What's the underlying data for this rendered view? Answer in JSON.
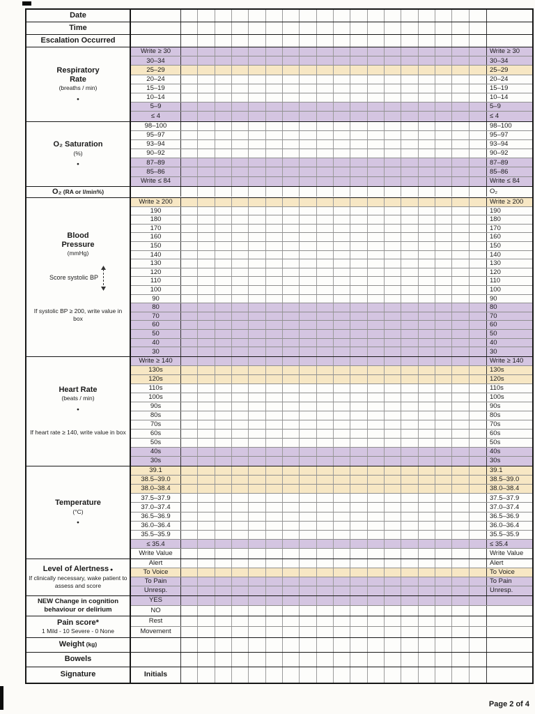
{
  "page": {
    "footer": "Page 2 of 4"
  },
  "colors": {
    "purple": "#d4c5e1",
    "yellow": "#f7e7c4"
  },
  "icons": {
    "bullet": "●",
    "score_arrow": "up-down-dashed-arrow"
  },
  "table": {
    "sections": [
      {
        "id": "date",
        "label": {
          "title": "Date"
        },
        "rows": [
          {
            "v": "",
            "r": "",
            "hl": "none"
          }
        ]
      },
      {
        "id": "time",
        "label": {
          "title": "Time"
        },
        "rows": [
          {
            "v": "",
            "r": "",
            "hl": "none"
          }
        ]
      },
      {
        "id": "escalation",
        "label": {
          "title": "Escalation Occurred"
        },
        "rows": [
          {
            "v": "",
            "r": "",
            "hl": "none"
          }
        ]
      },
      {
        "id": "respiratory-rate",
        "label": {
          "title": "Respiratory\nRate",
          "sub": "(breaths / min)",
          "bullet": true
        },
        "rows": [
          {
            "v": "Write ≥ 30",
            "r": "Write ≥ 30",
            "hl": "purple"
          },
          {
            "v": "30–34",
            "r": "30–34",
            "hl": "purple"
          },
          {
            "v": "25–29",
            "r": "25–29",
            "hl": "yellow"
          },
          {
            "v": "20–24",
            "r": "20–24",
            "hl": "none"
          },
          {
            "v": "15–19",
            "r": "15–19",
            "hl": "none"
          },
          {
            "v": "10–14",
            "r": "10–14",
            "hl": "none"
          },
          {
            "v": "5–9",
            "r": "5–9",
            "hl": "purple"
          },
          {
            "v": "≤ 4",
            "r": "≤ 4",
            "hl": "purple"
          }
        ]
      },
      {
        "id": "o2-saturation",
        "label": {
          "title": "O₂ Saturation",
          "sub": "(%)",
          "bullet": true
        },
        "rows": [
          {
            "v": "98–100",
            "r": "98–100",
            "hl": "none"
          },
          {
            "v": "95–97",
            "r": "95–97",
            "hl": "none"
          },
          {
            "v": "93–94",
            "r": "93–94",
            "hl": "none"
          },
          {
            "v": "90–92",
            "r": "90–92",
            "hl": "none"
          },
          {
            "v": "87–89",
            "r": "87–89",
            "hl": "purple"
          },
          {
            "v": "85–86",
            "r": "85–86",
            "hl": "purple"
          },
          {
            "v": "Write ≤ 84",
            "r": "Write ≤ 84",
            "hl": "purple"
          }
        ]
      },
      {
        "id": "o2-delivery",
        "label": {
          "title": "O₂",
          "sub_inline": "(RA or l/min%)"
        },
        "rows": [
          {
            "v": "",
            "r": "O₂",
            "hl": "none"
          }
        ]
      },
      {
        "id": "blood-pressure",
        "label": {
          "title": "Blood\nPressure",
          "sub": "(mmHg)",
          "mid": "Score systolic BP",
          "arrow": true,
          "note": "If systolic BP ≥ 200, write value in box"
        },
        "rows": [
          {
            "v": "Write ≥ 200",
            "r": "Write ≥ 200",
            "hl": "yellow"
          },
          {
            "v": "190",
            "r": "190",
            "hl": "none"
          },
          {
            "v": "180",
            "r": "180",
            "hl": "none"
          },
          {
            "v": "170",
            "r": "170",
            "hl": "none"
          },
          {
            "v": "160",
            "r": "160",
            "hl": "none"
          },
          {
            "v": "150",
            "r": "150",
            "hl": "none"
          },
          {
            "v": "140",
            "r": "140",
            "hl": "none"
          },
          {
            "v": "130",
            "r": "130",
            "hl": "none"
          },
          {
            "v": "120",
            "r": "120",
            "hl": "none"
          },
          {
            "v": "110",
            "r": "110",
            "hl": "none"
          },
          {
            "v": "100",
            "r": "100",
            "hl": "none"
          },
          {
            "v": "90",
            "r": "90",
            "hl": "none"
          },
          {
            "v": "80",
            "r": "80",
            "hl": "purple"
          },
          {
            "v": "70",
            "r": "70",
            "hl": "purple"
          },
          {
            "v": "60",
            "r": "60",
            "hl": "purple"
          },
          {
            "v": "50",
            "r": "50",
            "hl": "purple"
          },
          {
            "v": "40",
            "r": "40",
            "hl": "purple"
          },
          {
            "v": "30",
            "r": "30",
            "hl": "purple"
          }
        ]
      },
      {
        "id": "heart-rate",
        "label": {
          "title": "Heart Rate",
          "sub": "(beats / min)",
          "bullet": true,
          "note": "If heart rate ≥ 140, write value in box"
        },
        "rows": [
          {
            "v": "Write ≥ 140",
            "r": "Write ≥ 140",
            "hl": "purple"
          },
          {
            "v": "130s",
            "r": "130s",
            "hl": "yellow"
          },
          {
            "v": "120s",
            "r": "120s",
            "hl": "yellow"
          },
          {
            "v": "110s",
            "r": "110s",
            "hl": "none"
          },
          {
            "v": "100s",
            "r": "100s",
            "hl": "none"
          },
          {
            "v": "90s",
            "r": "90s",
            "hl": "none"
          },
          {
            "v": "80s",
            "r": "80s",
            "hl": "none"
          },
          {
            "v": "70s",
            "r": "70s",
            "hl": "none"
          },
          {
            "v": "60s",
            "r": "60s",
            "hl": "none"
          },
          {
            "v": "50s",
            "r": "50s",
            "hl": "none"
          },
          {
            "v": "40s",
            "r": "40s",
            "hl": "purple"
          },
          {
            "v": "30s",
            "r": "30s",
            "hl": "purple"
          }
        ]
      },
      {
        "id": "temperature",
        "label": {
          "title": "Temperature",
          "sub": "(°C)",
          "bullet": true
        },
        "rows": [
          {
            "v": "39.1",
            "r": "39.1",
            "hl": "yellow"
          },
          {
            "v": "38.5–39.0",
            "r": "38.5–39.0",
            "hl": "yellow"
          },
          {
            "v": "38.0–38.4",
            "r": "38.0–38.4",
            "hl": "yellow"
          },
          {
            "v": "37.5–37.9",
            "r": "37.5–37.9",
            "hl": "none"
          },
          {
            "v": "37.0–37.4",
            "r": "37.0–37.4",
            "hl": "none"
          },
          {
            "v": "36.5–36.9",
            "r": "36.5–36.9",
            "hl": "none"
          },
          {
            "v": "36.0–36.4",
            "r": "36.0–36.4",
            "hl": "none"
          },
          {
            "v": "35.5–35.9",
            "r": "35.5–35.9",
            "hl": "none"
          },
          {
            "v": "≤ 35.4",
            "r": "≤ 35.4",
            "hl": "purple"
          },
          {
            "v": "Write Value",
            "r": "Write Value",
            "hl": "none"
          }
        ]
      },
      {
        "id": "alertness",
        "label": {
          "title": "Level of Alertness",
          "bullet_inline": true,
          "sub2": "If clinically necessary, wake patient to assess and score"
        },
        "rows": [
          {
            "v": "Alert",
            "r": "Alert",
            "hl": "none"
          },
          {
            "v": "To Voice",
            "r": "To Voice",
            "hl": "yellow"
          },
          {
            "v": "To Pain",
            "r": "To Pain",
            "hl": "purple"
          },
          {
            "v": "Unresp.",
            "r": "Unresp.",
            "hl": "purple"
          }
        ]
      },
      {
        "id": "cognition",
        "label": {
          "title": "NEW Change in cognition\nbehaviour or delirium",
          "small_title": true
        },
        "rows": [
          {
            "v": "YES",
            "r": "",
            "hl": "purple"
          },
          {
            "v": "NO",
            "r": "",
            "hl": "none"
          }
        ]
      },
      {
        "id": "pain-score",
        "label": {
          "title": "Pain score*",
          "sub": "1 Mild - 10 Severe - 0 None"
        },
        "rows": [
          {
            "v": "Rest",
            "r": "",
            "hl": "none"
          },
          {
            "v": "Movement",
            "r": "",
            "hl": "none"
          }
        ]
      },
      {
        "id": "weight",
        "label": {
          "title": "Weight",
          "sub_inline": "(kg)"
        },
        "rows": [
          {
            "v": "",
            "r": "",
            "hl": "none"
          }
        ]
      },
      {
        "id": "bowels",
        "label": {
          "title": "Bowels"
        },
        "rows": [
          {
            "v": "",
            "r": "",
            "hl": "none"
          }
        ]
      },
      {
        "id": "signature",
        "label": {
          "title": "Signature"
        },
        "rows": [
          {
            "v": "Initials",
            "r": "",
            "hl": "none",
            "b": true
          }
        ]
      }
    ]
  }
}
